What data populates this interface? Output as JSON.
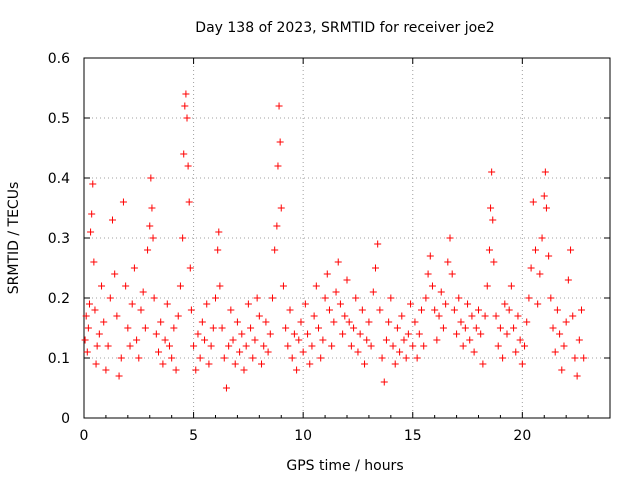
{
  "chart_data": {
    "type": "scatter",
    "title": "Day 138 of 2023, SRMTID for receiver joe2",
    "xlabel": "GPS time / hours",
    "ylabel": "SRMTID / TECUs",
    "xlim": [
      0,
      24
    ],
    "ylim": [
      0,
      0.6
    ],
    "xticks": [
      0,
      5,
      10,
      15,
      20
    ],
    "xtick_labels": [
      "0",
      "5",
      "10",
      "15",
      "20"
    ],
    "yticks": [
      0,
      0.1,
      0.2,
      0.3,
      0.4,
      0.5,
      0.6
    ],
    "ytick_labels": [
      "0",
      "0.1",
      "0.2",
      "0.3",
      "0.4",
      "0.5",
      "0.6"
    ],
    "grid": true,
    "marker": "+",
    "series_color": "#ff0000",
    "series": [
      {
        "name": "SRMTID",
        "points": [
          [
            0.05,
            0.13
          ],
          [
            0.1,
            0.17
          ],
          [
            0.15,
            0.11
          ],
          [
            0.2,
            0.15
          ],
          [
            0.25,
            0.19
          ],
          [
            0.3,
            0.31
          ],
          [
            0.35,
            0.34
          ],
          [
            0.4,
            0.39
          ],
          [
            0.45,
            0.26
          ],
          [
            0.5,
            0.18
          ],
          [
            0.55,
            0.09
          ],
          [
            0.6,
            0.12
          ],
          [
            0.7,
            0.14
          ],
          [
            0.8,
            0.22
          ],
          [
            0.9,
            0.16
          ],
          [
            1.0,
            0.08
          ],
          [
            1.1,
            0.12
          ],
          [
            1.2,
            0.2
          ],
          [
            1.3,
            0.33
          ],
          [
            1.4,
            0.24
          ],
          [
            1.5,
            0.17
          ],
          [
            1.6,
            0.07
          ],
          [
            1.7,
            0.1
          ],
          [
            1.8,
            0.36
          ],
          [
            1.9,
            0.22
          ],
          [
            2.0,
            0.15
          ],
          [
            2.1,
            0.12
          ],
          [
            2.2,
            0.19
          ],
          [
            2.3,
            0.25
          ],
          [
            2.4,
            0.13
          ],
          [
            2.5,
            0.1
          ],
          [
            2.6,
            0.18
          ],
          [
            2.7,
            0.21
          ],
          [
            2.8,
            0.15
          ],
          [
            2.9,
            0.28
          ],
          [
            3.0,
            0.32
          ],
          [
            3.05,
            0.4
          ],
          [
            3.1,
            0.35
          ],
          [
            3.15,
            0.3
          ],
          [
            3.2,
            0.2
          ],
          [
            3.3,
            0.14
          ],
          [
            3.4,
            0.11
          ],
          [
            3.5,
            0.16
          ],
          [
            3.6,
            0.09
          ],
          [
            3.7,
            0.13
          ],
          [
            3.8,
            0.19
          ],
          [
            3.9,
            0.12
          ],
          [
            4.0,
            0.1
          ],
          [
            4.1,
            0.15
          ],
          [
            4.2,
            0.08
          ],
          [
            4.3,
            0.17
          ],
          [
            4.4,
            0.22
          ],
          [
            4.5,
            0.3
          ],
          [
            4.55,
            0.44
          ],
          [
            4.6,
            0.52
          ],
          [
            4.65,
            0.54
          ],
          [
            4.7,
            0.5
          ],
          [
            4.75,
            0.42
          ],
          [
            4.8,
            0.36
          ],
          [
            4.85,
            0.25
          ],
          [
            4.9,
            0.18
          ],
          [
            5.0,
            0.12
          ],
          [
            5.1,
            0.08
          ],
          [
            5.2,
            0.14
          ],
          [
            5.3,
            0.1
          ],
          [
            5.4,
            0.16
          ],
          [
            5.5,
            0.13
          ],
          [
            5.6,
            0.19
          ],
          [
            5.7,
            0.09
          ],
          [
            5.8,
            0.12
          ],
          [
            5.9,
            0.15
          ],
          [
            6.0,
            0.2
          ],
          [
            6.1,
            0.28
          ],
          [
            6.15,
            0.31
          ],
          [
            6.2,
            0.22
          ],
          [
            6.3,
            0.15
          ],
          [
            6.4,
            0.1
          ],
          [
            6.5,
            0.05
          ],
          [
            6.6,
            0.12
          ],
          [
            6.7,
            0.18
          ],
          [
            6.8,
            0.13
          ],
          [
            6.9,
            0.09
          ],
          [
            7.0,
            0.16
          ],
          [
            7.1,
            0.11
          ],
          [
            7.2,
            0.14
          ],
          [
            7.3,
            0.08
          ],
          [
            7.4,
            0.12
          ],
          [
            7.5,
            0.19
          ],
          [
            7.6,
            0.15
          ],
          [
            7.7,
            0.1
          ],
          [
            7.8,
            0.13
          ],
          [
            7.9,
            0.2
          ],
          [
            8.0,
            0.17
          ],
          [
            8.1,
            0.09
          ],
          [
            8.2,
            0.12
          ],
          [
            8.3,
            0.16
          ],
          [
            8.4,
            0.11
          ],
          [
            8.5,
            0.14
          ],
          [
            8.6,
            0.2
          ],
          [
            8.7,
            0.28
          ],
          [
            8.8,
            0.32
          ],
          [
            8.85,
            0.42
          ],
          [
            8.9,
            0.52
          ],
          [
            8.95,
            0.46
          ],
          [
            9.0,
            0.35
          ],
          [
            9.1,
            0.22
          ],
          [
            9.2,
            0.15
          ],
          [
            9.3,
            0.12
          ],
          [
            9.4,
            0.18
          ],
          [
            9.5,
            0.1
          ],
          [
            9.6,
            0.14
          ],
          [
            9.7,
            0.08
          ],
          [
            9.8,
            0.13
          ],
          [
            9.9,
            0.16
          ],
          [
            10.0,
            0.11
          ],
          [
            10.1,
            0.19
          ],
          [
            10.2,
            0.14
          ],
          [
            10.3,
            0.09
          ],
          [
            10.4,
            0.12
          ],
          [
            10.5,
            0.17
          ],
          [
            10.6,
            0.22
          ],
          [
            10.7,
            0.15
          ],
          [
            10.8,
            0.1
          ],
          [
            10.9,
            0.13
          ],
          [
            11.0,
            0.2
          ],
          [
            11.1,
            0.24
          ],
          [
            11.2,
            0.18
          ],
          [
            11.3,
            0.12
          ],
          [
            11.4,
            0.16
          ],
          [
            11.5,
            0.21
          ],
          [
            11.6,
            0.26
          ],
          [
            11.7,
            0.19
          ],
          [
            11.8,
            0.14
          ],
          [
            11.9,
            0.17
          ],
          [
            12.0,
            0.23
          ],
          [
            12.1,
            0.16
          ],
          [
            12.2,
            0.12
          ],
          [
            12.3,
            0.15
          ],
          [
            12.4,
            0.2
          ],
          [
            12.5,
            0.11
          ],
          [
            12.6,
            0.14
          ],
          [
            12.7,
            0.18
          ],
          [
            12.8,
            0.09
          ],
          [
            12.9,
            0.13
          ],
          [
            13.0,
            0.16
          ],
          [
            13.1,
            0.12
          ],
          [
            13.2,
            0.21
          ],
          [
            13.3,
            0.25
          ],
          [
            13.4,
            0.29
          ],
          [
            13.5,
            0.18
          ],
          [
            13.6,
            0.1
          ],
          [
            13.7,
            0.06
          ],
          [
            13.8,
            0.13
          ],
          [
            13.9,
            0.16
          ],
          [
            14.0,
            0.2
          ],
          [
            14.1,
            0.12
          ],
          [
            14.2,
            0.09
          ],
          [
            14.3,
            0.15
          ],
          [
            14.4,
            0.11
          ],
          [
            14.5,
            0.17
          ],
          [
            14.6,
            0.13
          ],
          [
            14.7,
            0.1
          ],
          [
            14.8,
            0.14
          ],
          [
            14.9,
            0.19
          ],
          [
            15.0,
            0.12
          ],
          [
            15.1,
            0.16
          ],
          [
            15.2,
            0.1
          ],
          [
            15.3,
            0.14
          ],
          [
            15.4,
            0.18
          ],
          [
            15.5,
            0.12
          ],
          [
            15.6,
            0.2
          ],
          [
            15.7,
            0.24
          ],
          [
            15.8,
            0.27
          ],
          [
            15.9,
            0.22
          ],
          [
            16.0,
            0.18
          ],
          [
            16.1,
            0.13
          ],
          [
            16.2,
            0.17
          ],
          [
            16.3,
            0.21
          ],
          [
            16.4,
            0.15
          ],
          [
            16.5,
            0.19
          ],
          [
            16.6,
            0.26
          ],
          [
            16.7,
            0.3
          ],
          [
            16.8,
            0.24
          ],
          [
            16.9,
            0.18
          ],
          [
            17.0,
            0.14
          ],
          [
            17.1,
            0.2
          ],
          [
            17.2,
            0.16
          ],
          [
            17.3,
            0.12
          ],
          [
            17.4,
            0.15
          ],
          [
            17.5,
            0.19
          ],
          [
            17.6,
            0.13
          ],
          [
            17.7,
            0.17
          ],
          [
            17.8,
            0.11
          ],
          [
            17.9,
            0.15
          ],
          [
            18.0,
            0.18
          ],
          [
            18.1,
            0.14
          ],
          [
            18.2,
            0.09
          ],
          [
            18.3,
            0.17
          ],
          [
            18.4,
            0.22
          ],
          [
            18.5,
            0.28
          ],
          [
            18.55,
            0.35
          ],
          [
            18.6,
            0.41
          ],
          [
            18.65,
            0.33
          ],
          [
            18.7,
            0.26
          ],
          [
            18.8,
            0.17
          ],
          [
            18.9,
            0.12
          ],
          [
            19.0,
            0.15
          ],
          [
            19.1,
            0.1
          ],
          [
            19.2,
            0.19
          ],
          [
            19.3,
            0.14
          ],
          [
            19.4,
            0.18
          ],
          [
            19.5,
            0.22
          ],
          [
            19.6,
            0.15
          ],
          [
            19.7,
            0.11
          ],
          [
            19.8,
            0.17
          ],
          [
            19.9,
            0.13
          ],
          [
            20.0,
            0.09
          ],
          [
            20.1,
            0.12
          ],
          [
            20.2,
            0.16
          ],
          [
            20.3,
            0.2
          ],
          [
            20.4,
            0.25
          ],
          [
            20.5,
            0.36
          ],
          [
            20.6,
            0.28
          ],
          [
            20.7,
            0.19
          ],
          [
            20.8,
            0.24
          ],
          [
            20.9,
            0.3
          ],
          [
            21.0,
            0.37
          ],
          [
            21.05,
            0.41
          ],
          [
            21.1,
            0.35
          ],
          [
            21.2,
            0.27
          ],
          [
            21.3,
            0.2
          ],
          [
            21.4,
            0.15
          ],
          [
            21.5,
            0.11
          ],
          [
            21.6,
            0.18
          ],
          [
            21.7,
            0.14
          ],
          [
            21.8,
            0.08
          ],
          [
            21.9,
            0.12
          ],
          [
            22.0,
            0.16
          ],
          [
            22.1,
            0.23
          ],
          [
            22.2,
            0.28
          ],
          [
            22.3,
            0.17
          ],
          [
            22.4,
            0.1
          ],
          [
            22.5,
            0.07
          ],
          [
            22.6,
            0.13
          ],
          [
            22.7,
            0.18
          ],
          [
            22.8,
            0.1
          ]
        ]
      }
    ]
  }
}
